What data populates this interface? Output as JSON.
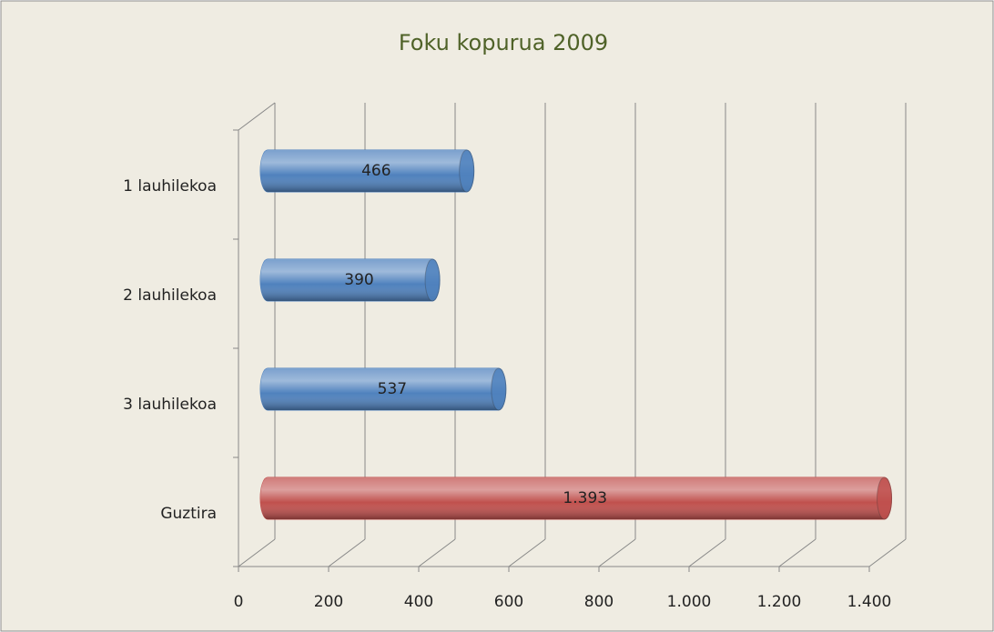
{
  "chart_data": {
    "type": "bar3d",
    "orientation": "horizontal",
    "title": "Foku kopurua 2009",
    "categories": [
      "1 lauhilekoa",
      "2 lauhilekoa",
      "3 lauhilekoa",
      "Guztira"
    ],
    "values": [
      466,
      390,
      537,
      1393
    ],
    "value_labels": [
      "466",
      "390",
      "537",
      "1.393"
    ],
    "colors": [
      "#4f81bd",
      "#4f81bd",
      "#4f81bd",
      "#c0504d"
    ],
    "xlim": [
      0,
      1400
    ],
    "xticks": [
      0,
      200,
      400,
      600,
      800,
      {
        "value": 1000,
        "label": "1.000"
      },
      {
        "value": 1200,
        "label": "1.200"
      },
      {
        "value": 1400,
        "label": "1.400"
      }
    ],
    "grid": true
  }
}
